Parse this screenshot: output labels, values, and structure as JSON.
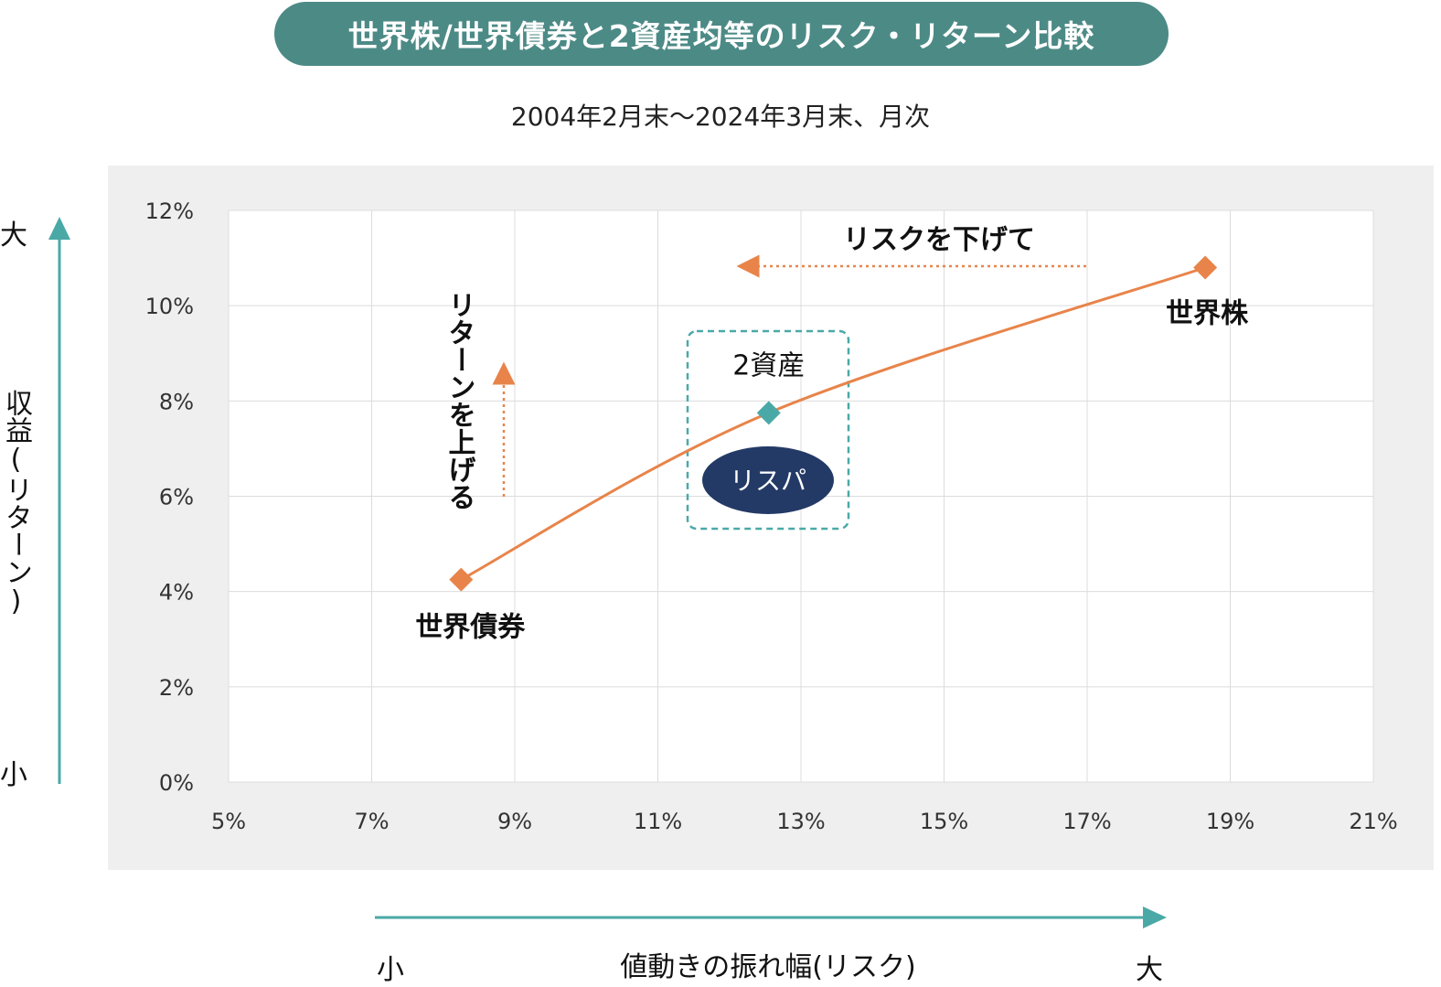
{
  "title": "世界株/世界債券と2資産均等のリスク・リターン比較",
  "subtitle": "2004年2月末～2024年3月末、月次",
  "y_axis": {
    "label": "収益(リターン)",
    "top_label": "大",
    "bottom_label": "小"
  },
  "x_axis": {
    "label": "値動きの振れ幅(リスク)",
    "left_label": "小",
    "right_label": "大"
  },
  "annotations": {
    "return_up": "リターンを上げる",
    "risk_down": "リスクを下げて",
    "badge": "リスパ"
  },
  "colors": {
    "title_bg": "#4c8a86",
    "line": "#e8844a",
    "point_teal": "#4aa9a7",
    "badge": "#243a66",
    "arrow_axis": "#4aa9a7"
  },
  "chart_data": {
    "type": "line",
    "title": "世界株/世界債券と2資産均等のリスク・リターン比較",
    "subtitle": "2004年2月末～2024年3月末、月次",
    "xlabel": "値動きの振れ幅(リスク)",
    "ylabel": "収益(リターン)",
    "xlim": [
      5,
      21
    ],
    "ylim": [
      0,
      12
    ],
    "x_ticks": [
      "5%",
      "7%",
      "9%",
      "11%",
      "13%",
      "15%",
      "17%",
      "19%",
      "21%"
    ],
    "y_ticks": [
      "0%",
      "2%",
      "4%",
      "6%",
      "8%",
      "10%",
      "12%"
    ],
    "grid": true,
    "points": [
      {
        "name": "世界債券",
        "x": 8.25,
        "y": 4.25,
        "color": "#e8844a"
      },
      {
        "name": "2資産",
        "x": 12.55,
        "y": 7.75,
        "color": "#4aa9a7"
      },
      {
        "name": "世界株",
        "x": 18.65,
        "y": 10.8,
        "color": "#e8844a"
      }
    ]
  }
}
